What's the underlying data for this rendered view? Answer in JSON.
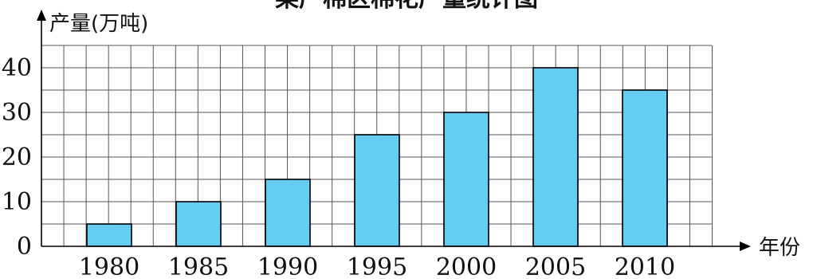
{
  "chart_data": {
    "type": "bar",
    "title": "某产棉区棉花产量统计图",
    "xlabel": "年份",
    "ylabel": "产量(万吨)",
    "categories": [
      "1980",
      "1985",
      "1990",
      "1995",
      "2000",
      "2005",
      "2010"
    ],
    "values": [
      5,
      10,
      15,
      25,
      30,
      40,
      35
    ],
    "ylim": [
      0,
      45
    ],
    "yticks": [
      0,
      10,
      20,
      30,
      40
    ],
    "grid": true,
    "bar_color": "#66ccf2"
  }
}
